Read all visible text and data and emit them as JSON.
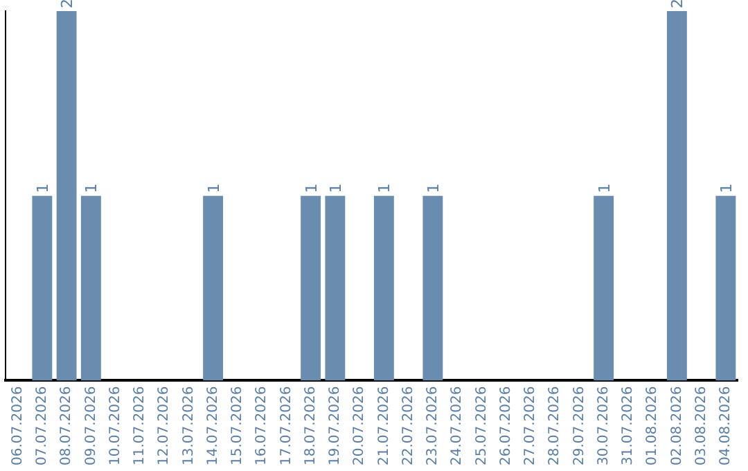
{
  "chart_data": {
    "type": "bar",
    "categories": [
      "06.07.2026",
      "07.07.2026",
      "08.07.2026",
      "09.07.2026",
      "10.07.2026",
      "11.07.2026",
      "12.07.2026",
      "13.07.2026",
      "14.07.2026",
      "15.07.2026",
      "16.07.2026",
      "17.07.2026",
      "18.07.2026",
      "19.07.2026",
      "20.07.2026",
      "21.07.2026",
      "22.07.2026",
      "23.07.2026",
      "24.07.2026",
      "25.07.2026",
      "26.07.2026",
      "27.07.2026",
      "28.07.2026",
      "29.07.2026",
      "30.07.2026",
      "31.07.2026",
      "01.08.2026",
      "02.08.2026",
      "03.08.2026",
      "04.08.2026"
    ],
    "values": [
      0,
      1,
      2,
      1,
      0,
      0,
      0,
      0,
      1,
      0,
      0,
      0,
      1,
      1,
      0,
      1,
      0,
      1,
      0,
      0,
      0,
      0,
      0,
      0,
      1,
      0,
      0,
      2,
      0,
      1
    ],
    "value_labels": [
      null,
      "1",
      "2",
      "1",
      null,
      null,
      null,
      null,
      "1",
      null,
      null,
      null,
      "1",
      "1",
      null,
      "1",
      null,
      "1",
      null,
      null,
      null,
      null,
      null,
      null,
      "1",
      null,
      null,
      "2",
      null,
      "1"
    ],
    "color": "#6a8caf",
    "grid": false,
    "legend": false,
    "tick_labels": "x"
  }
}
